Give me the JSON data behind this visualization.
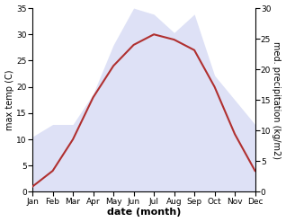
{
  "months": [
    "Jan",
    "Feb",
    "Mar",
    "Apr",
    "May",
    "Jun",
    "Jul",
    "Aug",
    "Sep",
    "Oct",
    "Nov",
    "Dec"
  ],
  "month_indices": [
    0,
    1,
    2,
    3,
    4,
    5,
    6,
    7,
    8,
    9,
    10,
    11
  ],
  "temperature": [
    1,
    4,
    10,
    18,
    24,
    28,
    30,
    29,
    27,
    20,
    11,
    4
  ],
  "precipitation": [
    9,
    11,
    11,
    16,
    24,
    30,
    29,
    26,
    29,
    19,
    15,
    11
  ],
  "temp_color": "#b03030",
  "precip_fill_color": "#c8cef0",
  "temp_ylim": [
    0,
    35
  ],
  "precip_ylim": [
    0,
    30
  ],
  "temp_yticks": [
    0,
    5,
    10,
    15,
    20,
    25,
    30,
    35
  ],
  "precip_yticks": [
    0,
    5,
    10,
    15,
    20,
    25,
    30
  ],
  "xlabel": "date (month)",
  "ylabel_left": "max temp (C)",
  "ylabel_right": "med. precipitation (kg/m2)",
  "background_color": "#ffffff",
  "axis_fontsize": 7,
  "tick_fontsize": 6.5,
  "label_fontsize": 8
}
